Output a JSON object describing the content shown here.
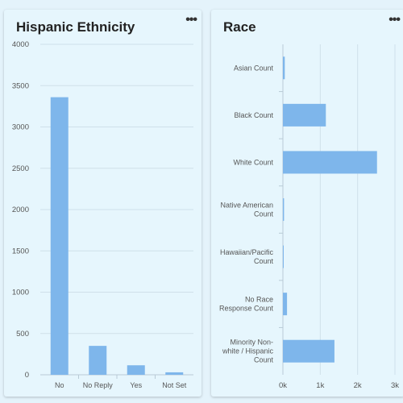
{
  "cards": [
    {
      "title": "Hispanic Ethnicity",
      "menu_icon": "more-horizontal-icon",
      "menu_label": "•••"
    },
    {
      "title": "Race",
      "menu_icon": "more-horizontal-icon",
      "menu_label": "•••"
    }
  ],
  "colors": {
    "bar": "#7eb6eb",
    "grid": "#cfe0ea",
    "axis": "#b9cbd6"
  },
  "chart_data": [
    {
      "type": "bar",
      "orientation": "vertical",
      "title": "Hispanic Ethnicity",
      "categories": [
        "No",
        "No Reply",
        "Yes",
        "Not Set"
      ],
      "values": [
        3360,
        350,
        115,
        30
      ],
      "yticks": [
        "0",
        "500",
        "1000",
        "1500",
        "2000",
        "2500",
        "3000",
        "3500",
        "4000"
      ],
      "ylim": [
        0,
        4000
      ],
      "grid": true
    },
    {
      "type": "bar",
      "orientation": "horizontal",
      "title": "Race",
      "categories": [
        [
          "Asian Count"
        ],
        [
          "Black Count"
        ],
        [
          "White Count"
        ],
        [
          "Native American",
          "Count"
        ],
        [
          "Hawaiian/Pacific",
          "Count"
        ],
        [
          "No Race",
          "Response Count"
        ],
        [
          "Minority Non-",
          "white / Hispanic",
          "Count"
        ]
      ],
      "values": [
        50,
        1150,
        2520,
        30,
        5,
        110,
        1380
      ],
      "xticks": [
        "0k",
        "1k",
        "2k",
        "3k"
      ],
      "xlim": [
        0,
        3000
      ],
      "grid": true
    }
  ]
}
